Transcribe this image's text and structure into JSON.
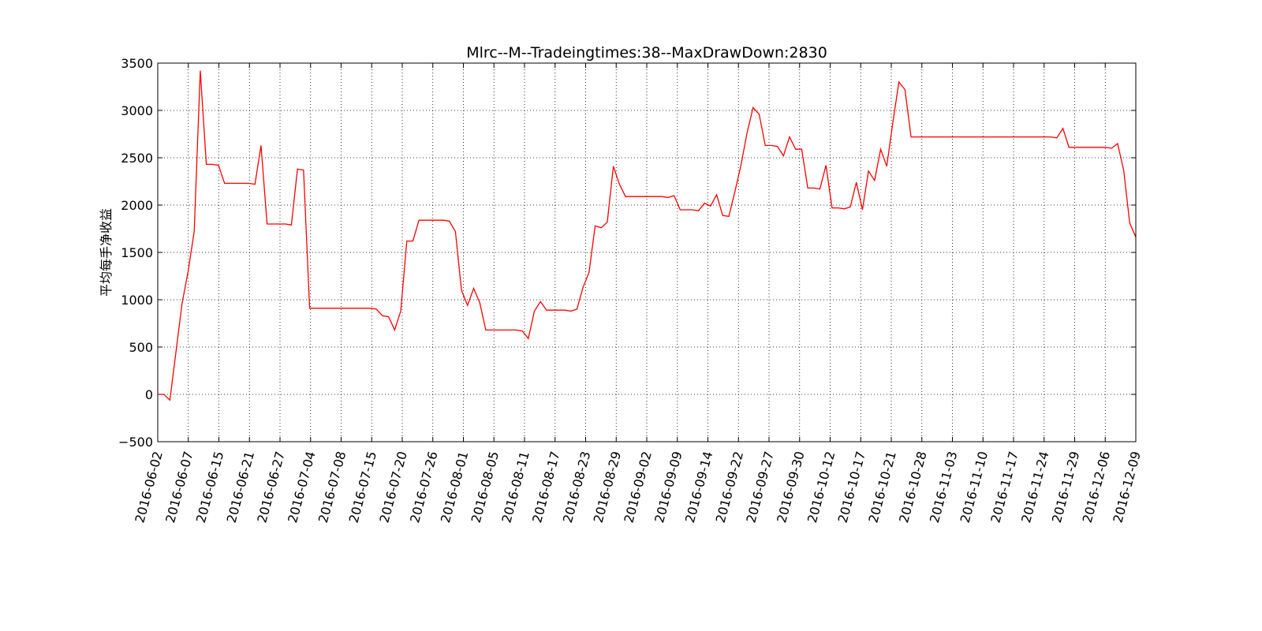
{
  "chart_data": {
    "type": "line",
    "title": "Mlrc--M--Tradeingtimes:38--MaxDrawDown:2830",
    "xlabel": "",
    "ylabel": "平均每手净收益",
    "ylim": [
      -500,
      3500
    ],
    "yticks": [
      -500,
      0,
      500,
      1000,
      1500,
      2000,
      2500,
      3000,
      3500
    ],
    "yticklabels": [
      "−500",
      "0",
      "500",
      "1000",
      "1500",
      "2000",
      "2500",
      "3000",
      "3500"
    ],
    "xticklabels": [
      "2016-06-02",
      "2016-06-07",
      "2016-06-15",
      "2016-06-21",
      "2016-06-27",
      "2016-07-04",
      "2016-07-08",
      "2016-07-15",
      "2016-07-20",
      "2016-07-26",
      "2016-08-01",
      "2016-08-05",
      "2016-08-11",
      "2016-08-17",
      "2016-08-23",
      "2016-08-29",
      "2016-09-02",
      "2016-09-09",
      "2016-09-14",
      "2016-09-22",
      "2016-09-27",
      "2016-09-30",
      "2016-10-12",
      "2016-10-17",
      "2016-10-21",
      "2016-10-28",
      "2016-11-03",
      "2016-11-10",
      "2016-11-17",
      "2016-11-24",
      "2016-11-29",
      "2016-12-06",
      "2016-12-09"
    ],
    "grid": true,
    "color": "#ff0000",
    "series": [
      {
        "values": [
          0,
          0,
          -60,
          450,
          960,
          1300,
          1720,
          3420,
          2430,
          2430,
          2420,
          2230,
          2230,
          2230,
          2230,
          2230,
          2220,
          2630,
          1800,
          1800,
          1800,
          1800,
          1790,
          2380,
          2370,
          910,
          910,
          910,
          910,
          910,
          910,
          910,
          910,
          910,
          910,
          910,
          900,
          830,
          820,
          680,
          880,
          1620,
          1620,
          1840,
          1840,
          1840,
          1840,
          1840,
          1830,
          1720,
          1100,
          940,
          1120,
          970,
          680,
          680,
          680,
          680,
          680,
          680,
          670,
          590,
          880,
          980,
          890,
          890,
          890,
          890,
          880,
          900,
          1130,
          1290,
          1780,
          1760,
          1820,
          2410,
          2220,
          2090,
          2090,
          2090,
          2090,
          2090,
          2090,
          2090,
          2080,
          2100,
          1950,
          1950,
          1950,
          1940,
          2020,
          1990,
          2110,
          1890,
          1880,
          2140,
          2420,
          2760,
          3030,
          2960,
          2630,
          2630,
          2620,
          2520,
          2720,
          2590,
          2590,
          2180,
          2180,
          2170,
          2420,
          1970,
          1970,
          1960,
          1980,
          2240,
          1950,
          2360,
          2260,
          2590,
          2410,
          2870,
          3300,
          3220,
          2720,
          2720,
          2720,
          2720,
          2720,
          2720,
          2720,
          2720,
          2720,
          2720,
          2720,
          2720,
          2720,
          2720,
          2720,
          2720,
          2720,
          2720,
          2720,
          2720,
          2720,
          2720,
          2720,
          2720,
          2710,
          2810,
          2610,
          2610,
          2610,
          2610,
          2610,
          2610,
          2610,
          2600,
          2650,
          2370,
          1810,
          1660
        ]
      }
    ]
  }
}
